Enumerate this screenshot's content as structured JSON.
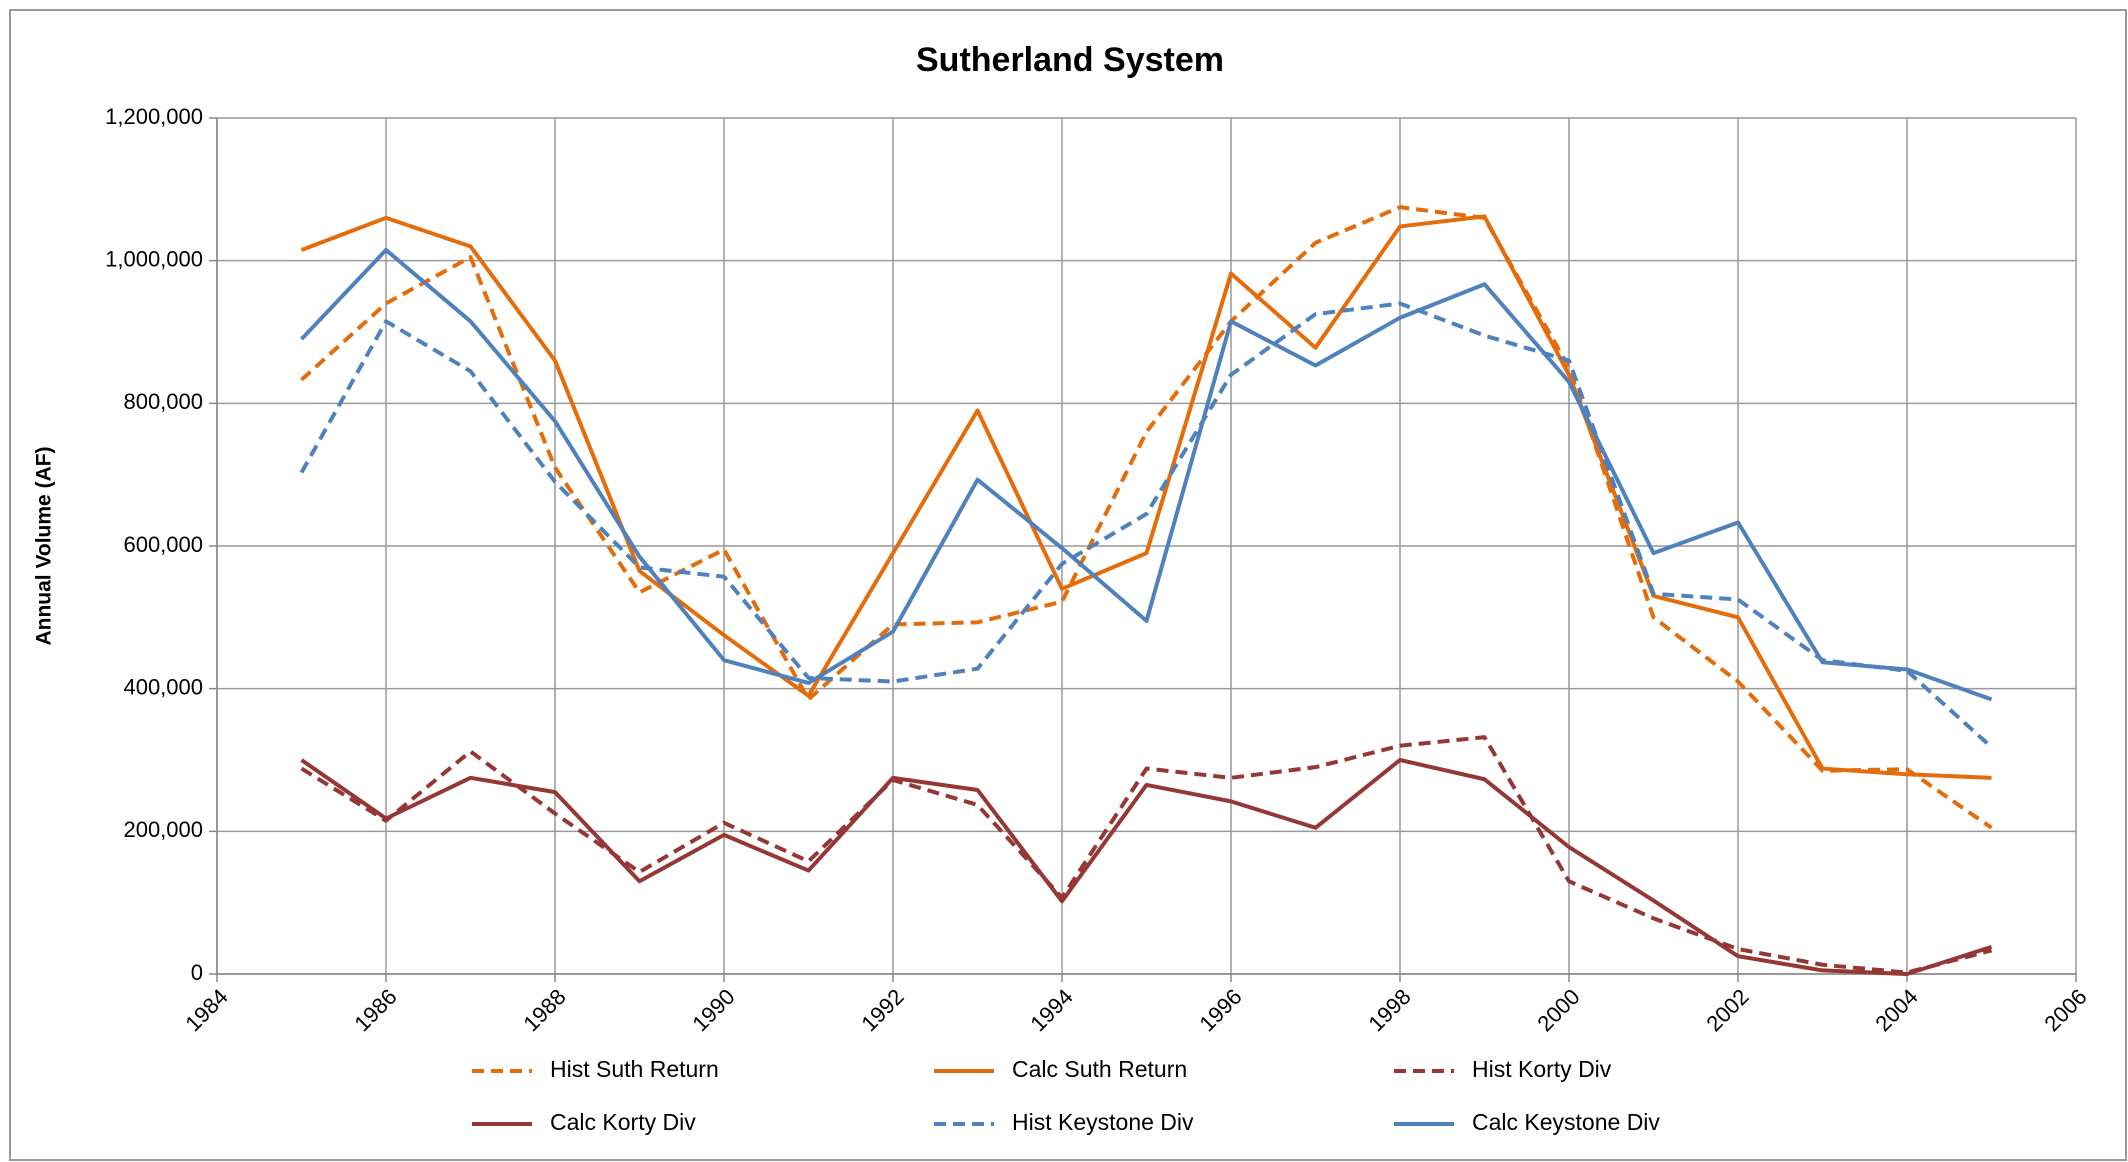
{
  "chart_data": {
    "type": "line",
    "title": "Sutherland System",
    "y_label": "Annual Volume (AF)",
    "xlim": [
      1984,
      2006
    ],
    "xticks": [
      1984,
      1986,
      1988,
      1990,
      1992,
      1994,
      1996,
      1998,
      2000,
      2002,
      2004,
      2006
    ],
    "ylim": [
      0,
      1200000
    ],
    "yticks": [
      0,
      {
        "value": 200000,
        "label": "200,000"
      },
      {
        "value": 400000,
        "label": "400,000"
      },
      {
        "value": 600000,
        "label": "600,000"
      },
      {
        "value": 800000,
        "label": "800,000"
      },
      {
        "value": 1000000,
        "label": "1,000,000"
      },
      {
        "value": 1200000,
        "label": "1,200,000"
      }
    ],
    "grid": true,
    "legend": "bottom",
    "x": [
      1985,
      1986,
      1987,
      1988,
      1989,
      1990,
      1991,
      1992,
      1993,
      1994,
      1995,
      1996,
      1997,
      1998,
      1999,
      2000,
      2001,
      2002,
      2003,
      2004,
      2005
    ],
    "series": [
      {
        "name": "Hist Suth Return",
        "color": "#e46c0a",
        "dashed": true,
        "values": [
          833000,
          940000,
          1005000,
          710000,
          535000,
          595000,
          385000,
          490000,
          493000,
          522000,
          760000,
          915000,
          1025000,
          1075000,
          1060000,
          850000,
          500000,
          410000,
          285000,
          287000,
          205000
        ]
      },
      {
        "name": "Calc Suth Return",
        "color": "#e46c0a",
        "dashed": false,
        "values": [
          1015000,
          1060000,
          1020000,
          860000,
          565000,
          475000,
          390000,
          590000,
          790000,
          540000,
          590000,
          982000,
          878000,
          1048000,
          1062000,
          840000,
          530000,
          500000,
          288000,
          280000,
          275000
        ]
      },
      {
        "name": "Hist Korty Div",
        "color": "#953735",
        "dashed": true,
        "values": [
          288000,
          215000,
          312000,
          225000,
          143000,
          212000,
          158000,
          272000,
          237000,
          107000,
          288000,
          275000,
          290000,
          320000,
          332000,
          130000,
          78000,
          35000,
          13000,
          2000,
          33000
        ]
      },
      {
        "name": "Calc Korty Div",
        "color": "#953735",
        "dashed": false,
        "values": [
          300000,
          218000,
          275000,
          255000,
          130000,
          195000,
          145000,
          275000,
          258000,
          102000,
          265000,
          242000,
          205000,
          300000,
          273000,
          178000,
          103000,
          25000,
          5000,
          0,
          38000
        ]
      },
      {
        "name": "Hist Keystone Div",
        "color": "#4f81bd",
        "dashed": true,
        "values": [
          703000,
          915000,
          845000,
          690000,
          570000,
          557000,
          415000,
          410000,
          428000,
          575000,
          645000,
          840000,
          925000,
          940000,
          895000,
          860000,
          533000,
          525000,
          440000,
          425000,
          318000
        ]
      },
      {
        "name": "Calc Keystone Div",
        "color": "#4f81bd",
        "dashed": false,
        "values": [
          890000,
          1015000,
          915000,
          775000,
          585000,
          440000,
          408000,
          480000,
          693000,
          597000,
          495000,
          915000,
          853000,
          920000,
          967000,
          830000,
          590000,
          633000,
          437000,
          427000,
          385000
        ]
      }
    ]
  }
}
